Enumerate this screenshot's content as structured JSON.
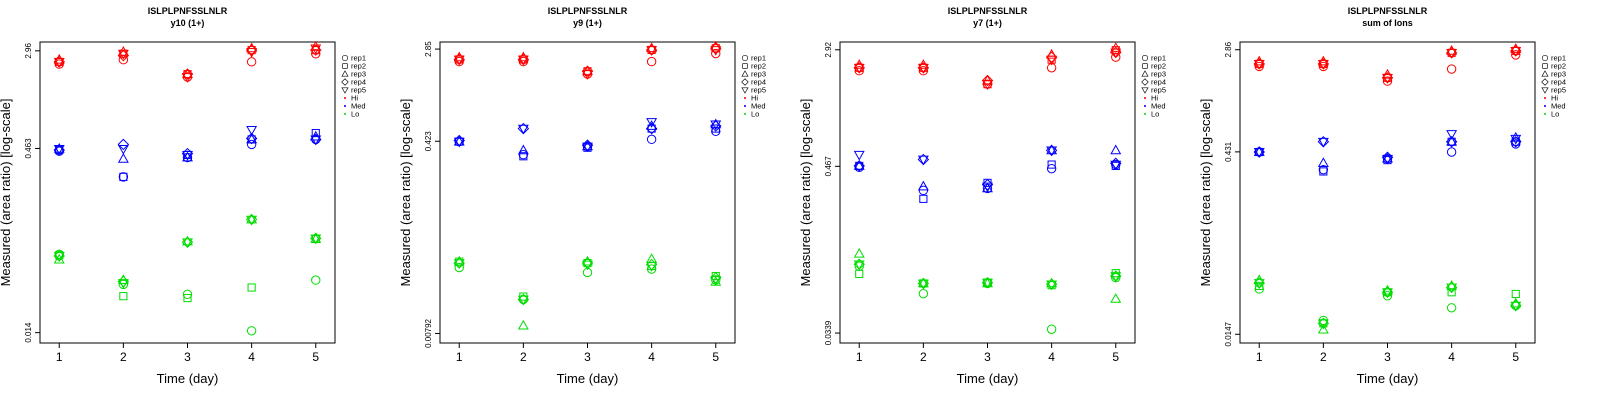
{
  "colors": {
    "Hi": "#ff0000",
    "Med": "#0000ff",
    "Lo": "#00dd00"
  },
  "legend": [
    {
      "label": "rep1",
      "marker": "circle",
      "color": "#000000"
    },
    {
      "label": "rep2",
      "marker": "square",
      "color": "#000000"
    },
    {
      "label": "rep3",
      "marker": "triangle",
      "color": "#000000"
    },
    {
      "label": "rep4",
      "marker": "diamond",
      "color": "#000000"
    },
    {
      "label": "rep5",
      "marker": "triangle-down",
      "color": "#000000"
    },
    {
      "label": "Hi",
      "marker": "dot",
      "color": "#ff0000"
    },
    {
      "label": "Med",
      "marker": "dot",
      "color": "#0000ff"
    },
    {
      "label": "Lo",
      "marker": "dot",
      "color": "#00dd00"
    }
  ],
  "chart_data": [
    {
      "type": "scatter",
      "title": "ISLPLPNFSSLNLR",
      "subtitle": "y10 (1+)",
      "xlabel": "Time (day)",
      "ylabel": "Measured (area ratio) [log-scale]",
      "log_scale": true,
      "x_ticks": [
        1,
        2,
        3,
        4,
        5
      ],
      "y_ticks": [
        "2.96",
        "0.463",
        "0.014"
      ],
      "y_tick_values": [
        2.96,
        0.463,
        0.014
      ],
      "ylim": [
        0.0115,
        3.5
      ],
      "legend_position": "right",
      "series": [
        {
          "name": "Hi",
          "values": [
            {
              "rep": "rep1",
              "points": [
                2.3,
                2.5,
                1.8,
                2.4,
                2.8
              ]
            },
            {
              "rep": "rep2",
              "points": [
                2.4,
                2.8,
                1.9,
                3.0,
                3.0
              ]
            },
            {
              "rep": "rep3",
              "points": [
                2.5,
                2.9,
                1.9,
                3.1,
                3.2
              ]
            },
            {
              "rep": "rep4",
              "points": [
                2.4,
                2.7,
                1.9,
                3.0,
                3.0
              ]
            },
            {
              "rep": "rep5",
              "points": [
                2.4,
                2.8,
                1.8,
                2.9,
                3.1
              ]
            }
          ]
        },
        {
          "name": "Med",
          "values": [
            {
              "rep": "rep1",
              "points": [
                0.44,
                0.27,
                0.39,
                0.5,
                0.55
              ]
            },
            {
              "rep": "rep2",
              "points": [
                0.45,
                0.27,
                0.41,
                0.55,
                0.62
              ]
            },
            {
              "rep": "rep3",
              "points": [
                0.46,
                0.38,
                0.39,
                0.55,
                0.58
              ]
            },
            {
              "rep": "rep4",
              "points": [
                0.45,
                0.5,
                0.42,
                0.56,
                0.55
              ]
            },
            {
              "rep": "rep5",
              "points": [
                0.46,
                0.46,
                0.41,
                0.66,
                0.55
              ]
            }
          ]
        },
        {
          "name": "Lo",
          "values": [
            {
              "rep": "rep1",
              "points": [
                0.062,
                0.035,
                0.029,
                0.0145,
                0.038
              ]
            },
            {
              "rep": "rep2",
              "points": [
                0.061,
                0.028,
                0.027,
                0.033,
                0.083
              ]
            },
            {
              "rep": "rep3",
              "points": [
                0.056,
                0.038,
                0.079,
                0.12,
                0.083
              ]
            },
            {
              "rep": "rep4",
              "points": [
                0.06,
                0.037,
                0.078,
                0.12,
                0.084
              ]
            },
            {
              "rep": "rep5",
              "points": [
                0.06,
                0.036,
                0.078,
                0.12,
                0.084
              ]
            }
          ]
        }
      ]
    },
    {
      "type": "scatter",
      "title": "ISLPLPNFSSLNLR",
      "subtitle": "y9 (1+)",
      "xlabel": "Time (day)",
      "ylabel": "Measured (area ratio) [log-scale]",
      "log_scale": true,
      "x_ticks": [
        1,
        2,
        3,
        4,
        5
      ],
      "y_ticks": [
        "2.85",
        "0.423",
        "0.00792"
      ],
      "y_tick_values": [
        2.85,
        0.423,
        0.00792
      ],
      "ylim": [
        0.0065,
        3.3
      ],
      "legend_position": "right",
      "series": [
        {
          "name": "Hi",
          "values": [
            {
              "rep": "rep1",
              "points": [
                2.2,
                2.2,
                1.7,
                2.2,
                2.6
              ]
            },
            {
              "rep": "rep2",
              "points": [
                2.3,
                2.3,
                1.8,
                2.8,
                2.9
              ]
            },
            {
              "rep": "rep3",
              "points": [
                2.4,
                2.4,
                1.8,
                2.9,
                3.0
              ]
            },
            {
              "rep": "rep4",
              "points": [
                2.3,
                2.3,
                1.8,
                2.8,
                2.9
              ]
            },
            {
              "rep": "rep5",
              "points": [
                2.3,
                2.3,
                1.7,
                2.8,
                2.8
              ]
            }
          ]
        },
        {
          "name": "Med",
          "values": [
            {
              "rep": "rep1",
              "points": [
                0.42,
                0.32,
                0.38,
                0.44,
                0.52
              ]
            },
            {
              "rep": "rep2",
              "points": [
                0.42,
                0.31,
                0.37,
                0.55,
                0.55
              ]
            },
            {
              "rep": "rep3",
              "points": [
                0.42,
                0.35,
                0.38,
                0.58,
                0.6
              ]
            },
            {
              "rep": "rep4",
              "points": [
                0.43,
                0.55,
                0.39,
                0.55,
                0.58
              ]
            },
            {
              "rep": "rep5",
              "points": [
                0.42,
                0.55,
                0.38,
                0.63,
                0.6
              ]
            }
          ]
        },
        {
          "name": "Lo",
          "values": [
            {
              "rep": "rep1",
              "points": [
                0.031,
                0.016,
                0.028,
                0.03,
                0.024
              ]
            },
            {
              "rep": "rep2",
              "points": [
                0.035,
                0.017,
                0.034,
                0.032,
                0.026
              ]
            },
            {
              "rep": "rep3",
              "points": [
                0.035,
                0.0093,
                0.035,
                0.037,
                0.023
              ]
            },
            {
              "rep": "rep4",
              "points": [
                0.034,
                0.016,
                0.034,
                0.033,
                0.025
              ]
            },
            {
              "rep": "rep5",
              "points": [
                0.034,
                0.016,
                0.033,
                0.032,
                0.024
              ]
            }
          ]
        }
      ]
    },
    {
      "type": "scatter",
      "title": "ISLPLPNFSSLNLR",
      "subtitle": "y7 (1+)",
      "xlabel": "Time (day)",
      "ylabel": "Measured (area ratio) [log-scale]",
      "log_scale": true,
      "x_ticks": [
        1,
        2,
        3,
        4,
        5
      ],
      "y_ticks": [
        "2.92",
        "0.467",
        "0.0339"
      ],
      "y_tick_values": [
        2.92,
        0.467,
        0.0339
      ],
      "ylim": [
        0.029,
        3.3
      ],
      "legend_position": "right",
      "series": [
        {
          "name": "Hi",
          "values": [
            {
              "rep": "rep1",
              "points": [
                2.1,
                2.1,
                1.7,
                2.2,
                2.6
              ]
            },
            {
              "rep": "rep2",
              "points": [
                2.2,
                2.2,
                1.7,
                2.5,
                2.9
              ]
            },
            {
              "rep": "rep3",
              "points": [
                2.3,
                2.3,
                1.8,
                2.7,
                3.0
              ]
            },
            {
              "rep": "rep4",
              "points": [
                2.2,
                2.2,
                1.8,
                2.6,
                2.8
              ]
            },
            {
              "rep": "rep5",
              "points": [
                2.2,
                2.2,
                1.7,
                2.5,
                2.8
              ]
            }
          ]
        },
        {
          "name": "Med",
          "values": [
            {
              "rep": "rep1",
              "points": [
                0.46,
                0.32,
                0.33,
                0.45,
                0.48
              ]
            },
            {
              "rep": "rep2",
              "points": [
                0.47,
                0.28,
                0.36,
                0.48,
                0.47
              ]
            },
            {
              "rep": "rep3",
              "points": [
                0.47,
                0.34,
                0.33,
                0.6,
                0.6
              ]
            },
            {
              "rep": "rep4",
              "points": [
                0.47,
                0.52,
                0.35,
                0.6,
                0.49
              ]
            },
            {
              "rep": "rep5",
              "points": [
                0.56,
                0.52,
                0.34,
                0.6,
                0.48
              ]
            }
          ]
        },
        {
          "name": "Lo",
          "values": [
            {
              "rep": "rep1",
              "points": [
                0.097,
                0.063,
                0.074,
                0.036,
                0.081
              ]
            },
            {
              "rep": "rep2",
              "points": [
                0.086,
                0.074,
                0.075,
                0.072,
                0.087
              ]
            },
            {
              "rep": "rep3",
              "points": [
                0.118,
                0.074,
                0.074,
                0.074,
                0.058
              ]
            },
            {
              "rep": "rep4",
              "points": [
                0.1,
                0.074,
                0.075,
                0.073,
                0.083
              ]
            },
            {
              "rep": "rep5",
              "points": [
                0.1,
                0.074,
                0.075,
                0.073,
                0.083
              ]
            }
          ]
        }
      ]
    },
    {
      "type": "scatter",
      "title": "ISLPLPNFSSLNLR",
      "subtitle": "sum of Ions",
      "xlabel": "Time (day)",
      "ylabel": "Measured (area ratio) [log-scale]",
      "log_scale": true,
      "x_ticks": [
        1,
        2,
        3,
        4,
        5
      ],
      "y_ticks": [
        "2.86",
        "0.431",
        "0.0147"
      ],
      "y_tick_values": [
        2.86,
        0.431,
        0.0147
      ],
      "ylim": [
        0.0125,
        3.3
      ],
      "legend_position": "right",
      "series": [
        {
          "name": "Hi",
          "values": [
            {
              "rep": "rep1",
              "points": [
                2.1,
                2.1,
                1.6,
                2.0,
                2.6
              ]
            },
            {
              "rep": "rep2",
              "points": [
                2.2,
                2.2,
                1.7,
                2.7,
                2.8
              ]
            },
            {
              "rep": "rep3",
              "points": [
                2.3,
                2.3,
                1.8,
                2.8,
                2.9
              ]
            },
            {
              "rep": "rep4",
              "points": [
                2.2,
                2.2,
                1.7,
                2.7,
                2.8
              ]
            },
            {
              "rep": "rep5",
              "points": [
                2.2,
                2.2,
                1.7,
                2.7,
                2.8
              ]
            }
          ]
        },
        {
          "name": "Med",
          "values": [
            {
              "rep": "rep1",
              "points": [
                0.43,
                0.31,
                0.38,
                0.43,
                0.5
              ]
            },
            {
              "rep": "rep2",
              "points": [
                0.43,
                0.3,
                0.37,
                0.52,
                0.52
              ]
            },
            {
              "rep": "rep3",
              "points": [
                0.43,
                0.35,
                0.38,
                0.52,
                0.56
              ]
            },
            {
              "rep": "rep4",
              "points": [
                0.43,
                0.52,
                0.39,
                0.52,
                0.52
              ]
            },
            {
              "rep": "rep5",
              "points": [
                0.43,
                0.52,
                0.38,
                0.6,
                0.55
              ]
            }
          ]
        },
        {
          "name": "Lo",
          "values": [
            {
              "rep": "rep1",
              "points": [
                0.034,
                0.019,
                0.03,
                0.024,
                0.025
              ]
            },
            {
              "rep": "rep2",
              "points": [
                0.036,
                0.018,
                0.032,
                0.032,
                0.031
              ]
            },
            {
              "rep": "rep3",
              "points": [
                0.04,
                0.016,
                0.033,
                0.036,
                0.026
              ]
            },
            {
              "rep": "rep4",
              "points": [
                0.038,
                0.018,
                0.032,
                0.035,
                0.025
              ]
            },
            {
              "rep": "rep5",
              "points": [
                0.038,
                0.018,
                0.032,
                0.035,
                0.025
              ]
            }
          ]
        }
      ]
    }
  ]
}
